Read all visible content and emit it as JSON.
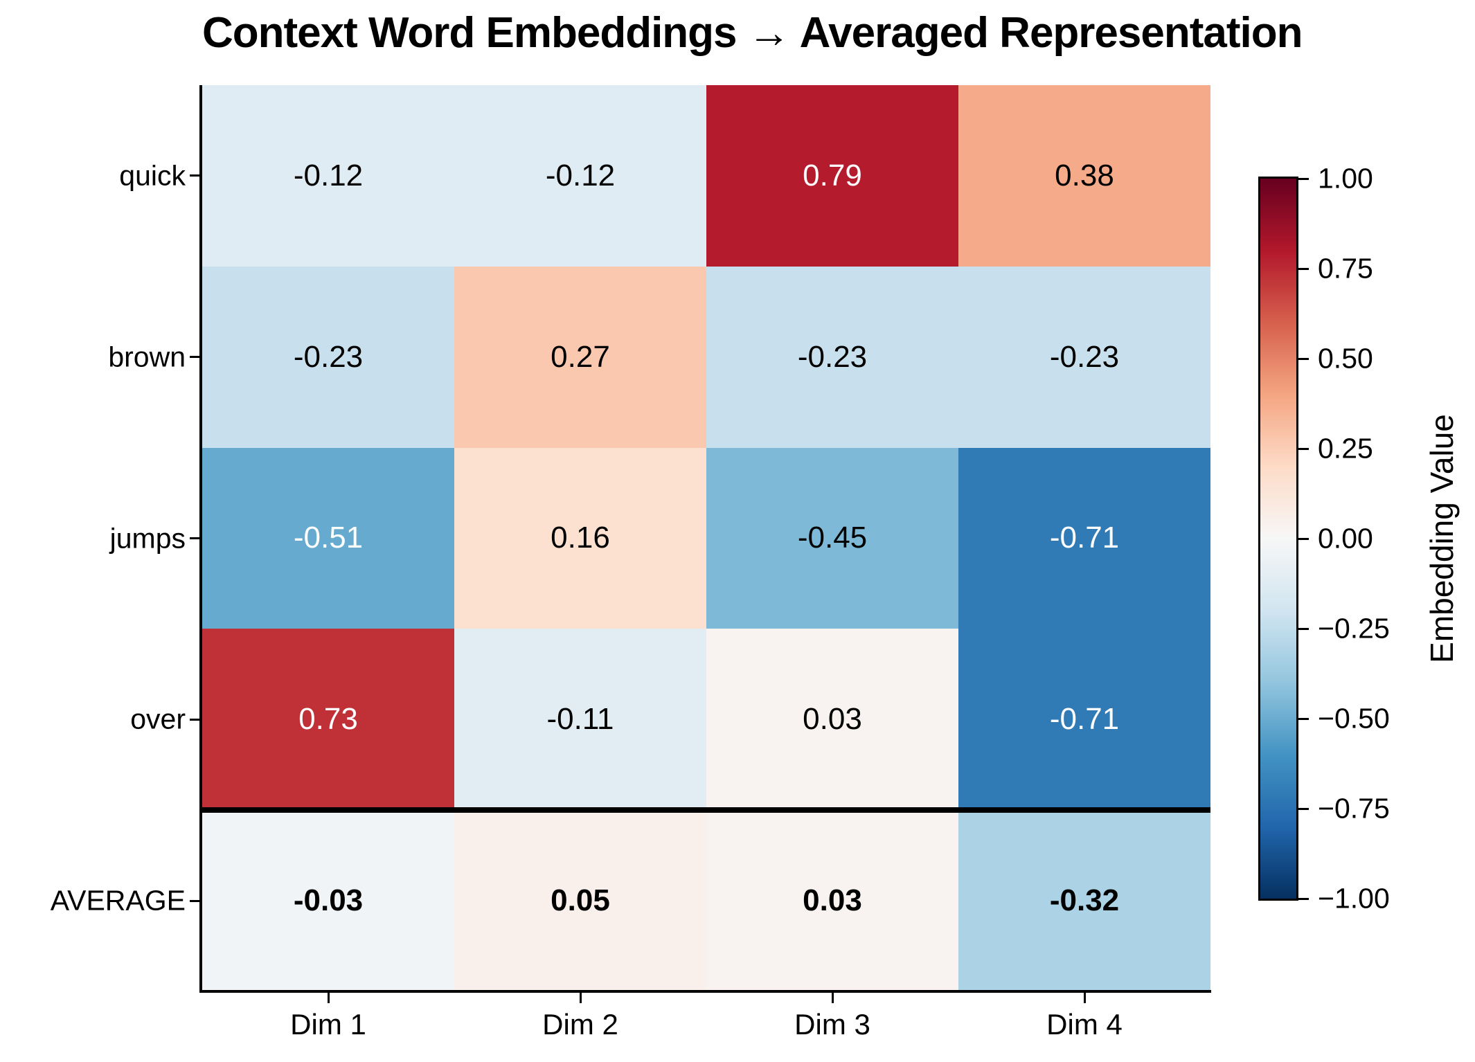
{
  "title": "Context Word Embeddings → Averaged Representation",
  "chart_data": {
    "type": "heatmap",
    "title": "Context Word Embeddings → Averaged Representation",
    "rows": [
      "quick",
      "brown",
      "jumps",
      "over",
      "AVERAGE"
    ],
    "columns": [
      "Dim 1",
      "Dim 2",
      "Dim 3",
      "Dim 4"
    ],
    "values": [
      [
        -0.12,
        -0.12,
        0.79,
        0.38
      ],
      [
        -0.23,
        0.27,
        -0.23,
        -0.23
      ],
      [
        -0.51,
        0.16,
        -0.45,
        -0.71
      ],
      [
        0.73,
        -0.11,
        0.03,
        -0.71
      ],
      [
        -0.03,
        0.05,
        0.03,
        -0.32
      ]
    ],
    "cell_labels": [
      [
        "-0.12",
        "-0.12",
        "0.79",
        "0.38"
      ],
      [
        "-0.23",
        "0.27",
        "-0.23",
        "-0.23"
      ],
      [
        "-0.51",
        "0.16",
        "-0.45",
        "-0.71"
      ],
      [
        "0.73",
        "-0.11",
        "0.03",
        "-0.71"
      ],
      [
        "-0.03",
        "0.05",
        "0.03",
        "-0.32"
      ]
    ],
    "bold_row_index": 4,
    "separator_after_row_index": 3,
    "vmin": -1.0,
    "vmax": 1.0,
    "colormap_name": "RdBu_r",
    "colormap_stops_red_to_blue": [
      "#67001f",
      "#b2182b",
      "#d6604d",
      "#f4a582",
      "#fddbc7",
      "#f7f7f7",
      "#d1e5f0",
      "#92c5de",
      "#4393c3",
      "#2166ac",
      "#053061"
    ],
    "white_text_threshold": 0.5,
    "grid": false,
    "colorbar": {
      "label": "Embedding Value",
      "tick_labels": [
        "1.00",
        "0.75",
        "0.50",
        "0.25",
        "0.00",
        "−0.25",
        "−0.50",
        "−0.75",
        "−1.00"
      ],
      "tick_values": [
        1.0,
        0.75,
        0.5,
        0.25,
        0.0,
        -0.25,
        -0.5,
        -0.75,
        -1.0
      ]
    },
    "colors": {
      "background": "#ffffff",
      "spine": "#000000",
      "separator_line": "#000000",
      "annotation_dark": "#000000",
      "annotation_light": "#ffffff"
    }
  }
}
